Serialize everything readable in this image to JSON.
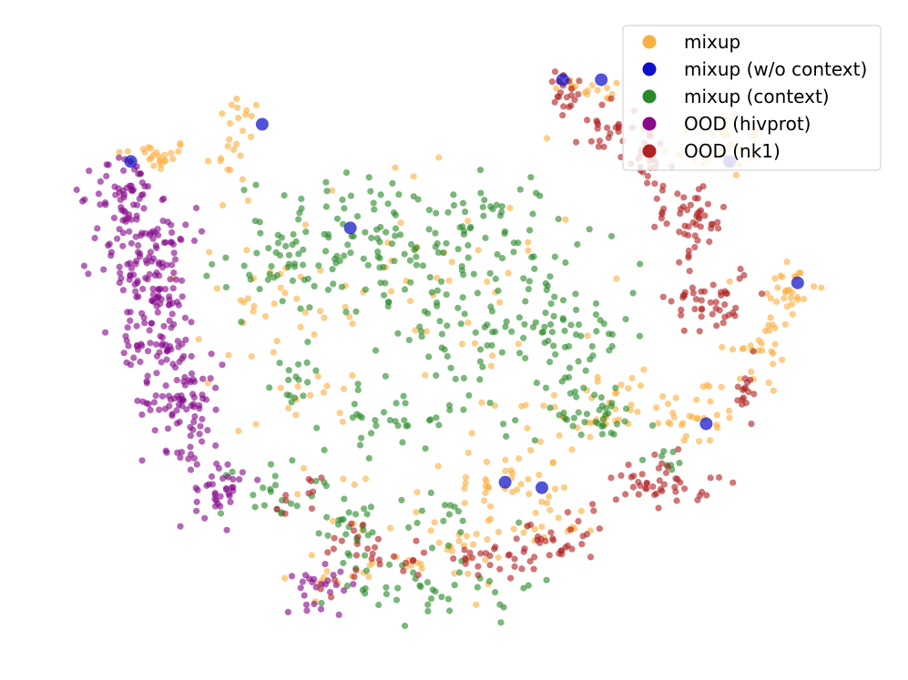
{
  "chart_data": {
    "type": "scatter",
    "title": "",
    "xlabel": "",
    "ylabel": "",
    "axes_visible": false,
    "grid": false,
    "legend_position": "top-right",
    "xlim": [
      0,
      100
    ],
    "ylim": [
      0,
      100
    ],
    "series": [
      {
        "name": "mixup",
        "color": "#FBB040",
        "clusters": [
          {
            "cx": 12.5,
            "cy": 80.5,
            "sx": 2.4,
            "sy": 1.3,
            "n": 25
          },
          {
            "cx": 22.9,
            "cy": 83.0,
            "sx": 1.5,
            "sy": 4.0,
            "n": 22
          },
          {
            "cx": 68.3,
            "cy": 91.5,
            "sx": 3.0,
            "sy": 1.0,
            "n": 16
          },
          {
            "cx": 82.5,
            "cy": 82.5,
            "sx": 3.5,
            "sy": 3.0,
            "n": 30
          },
          {
            "cx": 91.5,
            "cy": 58.3,
            "sx": 1.8,
            "sy": 3.2,
            "n": 30
          },
          {
            "cx": 88.0,
            "cy": 48.0,
            "sx": 2.2,
            "sy": 3.5,
            "n": 25
          },
          {
            "cx": 80.0,
            "cy": 38.0,
            "sx": 3.0,
            "sy": 3.2,
            "n": 30
          },
          {
            "cx": 56.5,
            "cy": 27.0,
            "sx": 3.5,
            "sy": 2.5,
            "n": 30
          },
          {
            "cx": 60.0,
            "cy": 20.0,
            "sx": 4.0,
            "sy": 2.5,
            "n": 25
          },
          {
            "cx": 62.0,
            "cy": 37.0,
            "sx": 4.0,
            "sy": 2.5,
            "n": 25
          },
          {
            "cx": 45.0,
            "cy": 60.0,
            "sx": 12.0,
            "sy": 10.0,
            "n": 60
          },
          {
            "cx": 28.5,
            "cy": 55.0,
            "sx": 5.0,
            "sy": 10.0,
            "n": 25
          },
          {
            "cx": 40.0,
            "cy": 22.0,
            "sx": 6.0,
            "sy": 5.0,
            "n": 20
          },
          {
            "cx": 30.0,
            "cy": 40.0,
            "sx": 3.0,
            "sy": 2.0,
            "n": 10
          },
          {
            "cx": 48.0,
            "cy": 14.0,
            "sx": 5.0,
            "sy": 2.5,
            "n": 20
          },
          {
            "cx": 70.0,
            "cy": 40.0,
            "sx": 3.0,
            "sy": 3.0,
            "n": 20
          },
          {
            "cx": 35.0,
            "cy": 12.0,
            "sx": 3.0,
            "sy": 2.0,
            "n": 10
          }
        ]
      },
      {
        "name": "mixup (w/o context)",
        "color": "#1010C8",
        "points": [
          [
            9.5,
            79.5
          ],
          [
            25.9,
            85.6
          ],
          [
            36.9,
            68.6
          ],
          [
            63.4,
            92.9
          ],
          [
            68.2,
            92.9
          ],
          [
            84.2,
            79.5
          ],
          [
            92.7,
            59.6
          ],
          [
            81.3,
            36.5
          ],
          [
            56.2,
            26.9
          ],
          [
            60.8,
            26.0
          ]
        ]
      },
      {
        "name": "mixup (context)",
        "color": "#2A8A2A",
        "clusters": [
          {
            "cx": 40.0,
            "cy": 65.0,
            "sx": 9.0,
            "sy": 6.0,
            "n": 110
          },
          {
            "cx": 55.0,
            "cy": 52.0,
            "sx": 6.0,
            "sy": 8.0,
            "n": 90
          },
          {
            "cx": 52.0,
            "cy": 68.0,
            "sx": 6.0,
            "sy": 4.0,
            "n": 50
          },
          {
            "cx": 64.0,
            "cy": 50.0,
            "sx": 4.0,
            "sy": 5.0,
            "n": 40
          },
          {
            "cx": 67.0,
            "cy": 38.0,
            "sx": 4.0,
            "sy": 2.0,
            "n": 35
          },
          {
            "cx": 42.0,
            "cy": 37.0,
            "sx": 4.0,
            "sy": 2.5,
            "n": 30
          },
          {
            "cx": 28.0,
            "cy": 62.0,
            "sx": 3.0,
            "sy": 4.0,
            "n": 30
          },
          {
            "cx": 30.0,
            "cy": 43.5,
            "sx": 1.5,
            "sy": 2.5,
            "n": 15
          },
          {
            "cx": 36.0,
            "cy": 20.0,
            "sx": 3.0,
            "sy": 4.0,
            "n": 30
          },
          {
            "cx": 27.0,
            "cy": 25.0,
            "sx": 3.0,
            "sy": 3.0,
            "n": 20
          },
          {
            "cx": 48.0,
            "cy": 10.0,
            "sx": 6.0,
            "sy": 3.0,
            "n": 40
          },
          {
            "cx": 49.0,
            "cy": 20.0,
            "sx": 2.5,
            "sy": 3.0,
            "n": 15
          },
          {
            "cx": 76.0,
            "cy": 30.5,
            "sx": 1.5,
            "sy": 1.0,
            "n": 8
          }
        ]
      },
      {
        "name": "OOD (hivprot)",
        "color": "#860A8A",
        "clusters": [
          {
            "cx": 9.0,
            "cy": 74.0,
            "sx": 2.0,
            "sy": 3.5,
            "n": 60
          },
          {
            "cx": 11.0,
            "cy": 63.0,
            "sx": 3.0,
            "sy": 3.5,
            "n": 80
          },
          {
            "cx": 13.0,
            "cy": 52.0,
            "sx": 2.5,
            "sy": 4.0,
            "n": 80
          },
          {
            "cx": 16.0,
            "cy": 40.0,
            "sx": 2.5,
            "sy": 4.0,
            "n": 80
          },
          {
            "cx": 20.5,
            "cy": 26.0,
            "sx": 1.5,
            "sy": 3.0,
            "n": 40
          },
          {
            "cx": 15.5,
            "cy": 68.0,
            "sx": 2.0,
            "sy": 1.5,
            "n": 15
          },
          {
            "cx": 33.5,
            "cy": 10.5,
            "sx": 2.5,
            "sy": 2.0,
            "n": 25
          }
        ]
      },
      {
        "name": "OOD (nk1)",
        "color": "#B22222",
        "clusters": [
          {
            "cx": 63.5,
            "cy": 90.0,
            "sx": 1.0,
            "sy": 2.0,
            "n": 20
          },
          {
            "cx": 69.0,
            "cy": 85.0,
            "sx": 2.0,
            "sy": 2.0,
            "n": 25
          },
          {
            "cx": 74.0,
            "cy": 79.0,
            "sx": 1.5,
            "sy": 2.0,
            "n": 20
          },
          {
            "cx": 79.0,
            "cy": 70.0,
            "sx": 2.5,
            "sy": 3.0,
            "n": 50
          },
          {
            "cx": 82.0,
            "cy": 57.0,
            "sx": 2.5,
            "sy": 3.0,
            "n": 45
          },
          {
            "cx": 86.0,
            "cy": 41.0,
            "sx": 1.0,
            "sy": 2.0,
            "n": 15
          },
          {
            "cx": 76.0,
            "cy": 27.0,
            "sx": 3.0,
            "sy": 2.0,
            "n": 45
          },
          {
            "cx": 62.0,
            "cy": 16.0,
            "sx": 3.5,
            "sy": 2.5,
            "n": 35
          },
          {
            "cx": 48.0,
            "cy": 14.5,
            "sx": 6.0,
            "sy": 2.0,
            "n": 20
          },
          {
            "cx": 38.0,
            "cy": 16.0,
            "sx": 3.0,
            "sy": 3.0,
            "n": 20
          },
          {
            "cx": 30.0,
            "cy": 24.0,
            "sx": 2.0,
            "sy": 2.0,
            "n": 10
          },
          {
            "cx": 55.0,
            "cy": 14.0,
            "sx": 2.0,
            "sy": 1.5,
            "n": 10
          }
        ]
      }
    ]
  }
}
